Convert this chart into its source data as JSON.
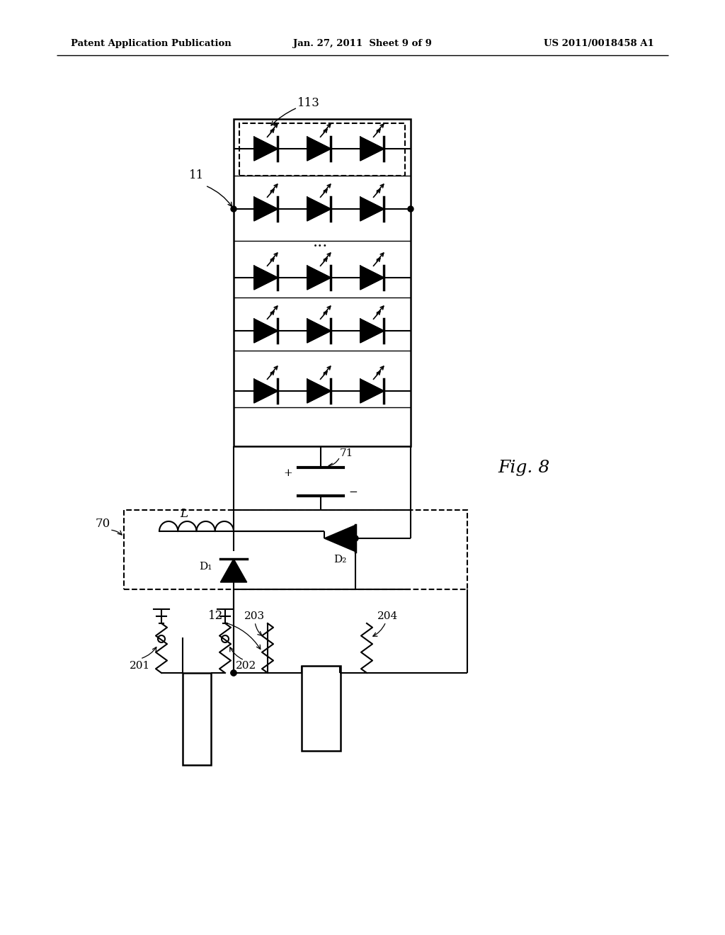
{
  "header_left": "Patent Application Publication",
  "header_center": "Jan. 27, 2011  Sheet 9 of 9",
  "header_right": "US 2011/0018458 A1",
  "fig_label": "Fig. 8",
  "bg_color": "#ffffff"
}
